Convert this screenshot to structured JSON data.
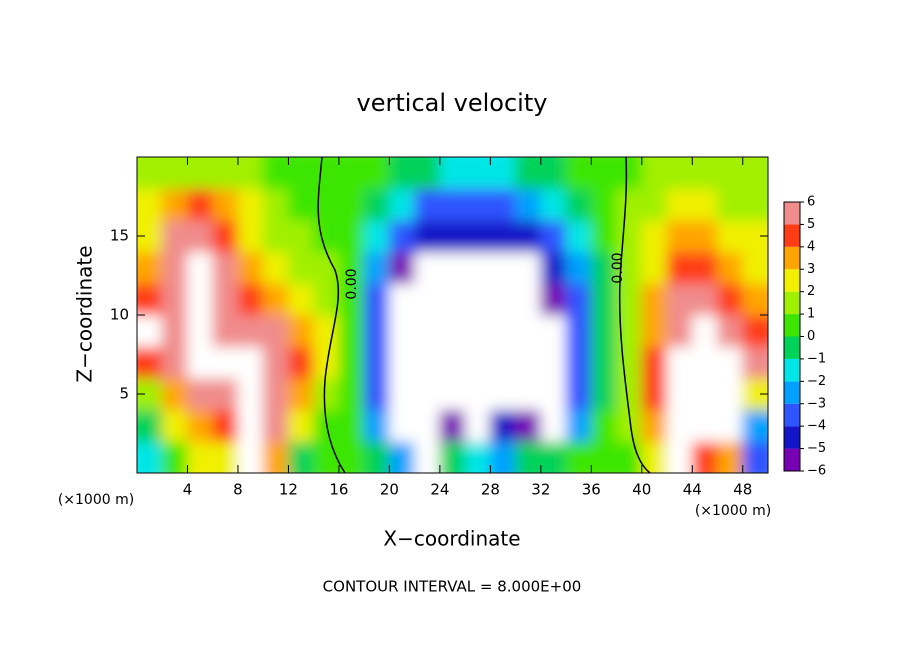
{
  "chart_data": {
    "type": "heatmap",
    "title": "vertical velocity",
    "x_label": "X−coordinate",
    "y_label": "Z−coordinate",
    "x_unit": "(×1000 m)",
    "x_unit_right": "(×1000 m)",
    "footer": "CONTOUR INTERVAL = 8.000E+00",
    "contour_labels": [
      "0.00",
      "0.00"
    ],
    "x": [
      1,
      3,
      5,
      7,
      9,
      11,
      13,
      15,
      17,
      19,
      21,
      23,
      25,
      27,
      29,
      31,
      33,
      35,
      37,
      39,
      41,
      43,
      45,
      47,
      49
    ],
    "y": [
      1,
      3,
      5,
      7,
      9,
      11,
      13,
      15,
      17,
      19
    ],
    "z": [
      [
        -2,
        0,
        2,
        2,
        8,
        3,
        -1,
        0,
        0,
        -1,
        -3,
        -7,
        -1,
        -2,
        -3,
        -1,
        -1,
        0,
        0,
        0,
        2,
        7,
        4,
        3,
        -4
      ],
      [
        -1,
        2,
        3,
        4,
        10,
        5,
        2,
        0,
        0,
        -3,
        -8,
        -10,
        -6,
        -8,
        -5,
        -6,
        -7,
        -3,
        0,
        1,
        3,
        8,
        9,
        8,
        -3
      ],
      [
        1,
        3,
        5,
        6,
        10,
        6,
        3,
        1,
        0,
        -4,
        -9,
        -10,
        -10,
        -10,
        -9,
        -10,
        -8,
        -4,
        -1,
        1,
        4,
        9,
        10,
        8,
        2
      ],
      [
        4,
        5,
        7,
        7,
        8,
        6,
        4,
        2,
        0,
        -4,
        -8,
        -10,
        -10,
        -10,
        -10,
        -10,
        -7,
        -4,
        -1,
        1,
        4,
        9,
        10,
        8,
        5
      ],
      [
        7,
        6,
        9,
        6,
        6,
        5,
        3,
        2,
        0,
        -4,
        -7,
        -10,
        -10,
        -10,
        -10,
        -10,
        -7,
        -4,
        -1,
        1,
        3,
        6,
        7,
        5,
        4
      ],
      [
        4,
        6,
        10,
        6,
        4,
        3,
        2,
        1,
        0,
        -4,
        -7,
        -10,
        -10,
        -10,
        -10,
        -9,
        -6,
        -4,
        -1,
        1,
        3,
        5,
        5,
        4,
        3
      ],
      [
        3,
        6,
        10,
        5,
        3,
        2,
        1,
        1,
        0,
        -3,
        -6,
        -8,
        -10,
        -9,
        -8,
        -7,
        -5,
        -3,
        -1,
        1,
        2,
        4,
        4,
        3,
        2
      ],
      [
        2,
        5,
        6,
        4,
        2,
        1,
        1,
        0,
        0,
        -2,
        -4,
        -5,
        -5,
        -5,
        -5,
        -5,
        -4,
        -2,
        0,
        1,
        2,
        3,
        3,
        2,
        2
      ],
      [
        2,
        3,
        4,
        3,
        2,
        1,
        0,
        0,
        0,
        -1,
        -2,
        -4,
        -4,
        -4,
        -4,
        -3,
        -2,
        -1,
        0,
        1,
        1,
        2,
        2,
        1,
        1
      ],
      [
        1,
        1,
        1,
        1,
        1,
        0,
        0,
        0,
        0,
        0,
        -1,
        -1,
        -2,
        -2,
        -2,
        -1,
        -1,
        0,
        0,
        0,
        1,
        1,
        1,
        1,
        1
      ]
    ],
    "xlim": [
      0,
      50
    ],
    "ylim": [
      0,
      20
    ],
    "xticks": [
      4,
      8,
      12,
      16,
      20,
      24,
      28,
      32,
      36,
      40,
      44,
      48
    ],
    "yticks": [
      5,
      10,
      15
    ],
    "clim": [
      -6,
      6
    ],
    "cticks": [
      {
        "value": -6,
        "label": "−6"
      },
      {
        "value": -5,
        "label": "−5"
      },
      {
        "value": -4,
        "label": "−4"
      },
      {
        "value": -3,
        "label": "−3"
      },
      {
        "value": -2,
        "label": "−2"
      },
      {
        "value": -1,
        "label": "−1"
      },
      0,
      1,
      2,
      3,
      4,
      5,
      6
    ],
    "colors": [
      "#7800b4",
      "#1414c8",
      "#2f55ff",
      "#00a0ff",
      "#00e6e6",
      "#00d25a",
      "#3ce600",
      "#a0f000",
      "#f0f000",
      "#ffa500",
      "#ff3c14",
      "#f08c8c"
    ],
    "out_of_range_color": "#ffffff"
  }
}
